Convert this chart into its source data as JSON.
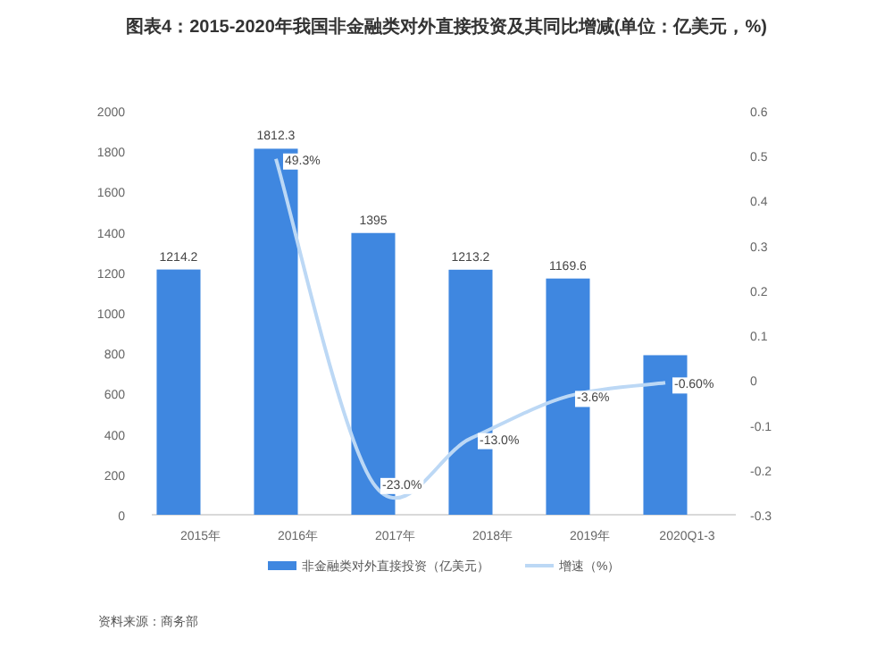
{
  "chart_data": {
    "type": "bar",
    "title": "图表4：2015-2020年我国非金融类对外直接投资及其同比增减(单位：亿美元，%)",
    "categories": [
      "2015年",
      "2016年",
      "2017年",
      "2018年",
      "2019年",
      "2020Q1-3"
    ],
    "series": [
      {
        "name": "非金融类对外直接投资（亿美元）",
        "color": "#3f87e0",
        "values": [
          1214.2,
          1812.3,
          1395,
          1213.2,
          1169.6,
          790
        ],
        "value_labels": [
          "1214.2",
          "1812.3",
          "1395",
          "1213.2",
          "1169.6",
          null
        ]
      },
      {
        "name": "增速（%）",
        "type": "line",
        "axis": "y2",
        "color": "#bcd8f5",
        "values": [
          null,
          0.493,
          -0.23,
          -0.13,
          -0.036,
          -0.006
        ],
        "value_labels": [
          null,
          "49.3%",
          "-23.0%",
          "-13.0%",
          "-3.6%",
          "-0.60%"
        ]
      }
    ],
    "ylim": [
      0,
      2000
    ],
    "yticks": [
      0,
      200,
      400,
      600,
      800,
      1000,
      1200,
      1400,
      1600,
      1800,
      2000
    ],
    "y2lim": [
      -0.3,
      0.6
    ],
    "y2ticks": [
      -0.3,
      -0.2,
      -0.1,
      0,
      0.1,
      0.2,
      0.3,
      0.4,
      0.5,
      0.6
    ],
    "grid": false,
    "legend": "bottom",
    "marker": "none",
    "annotations": [
      "资料来源：商务部"
    ]
  }
}
